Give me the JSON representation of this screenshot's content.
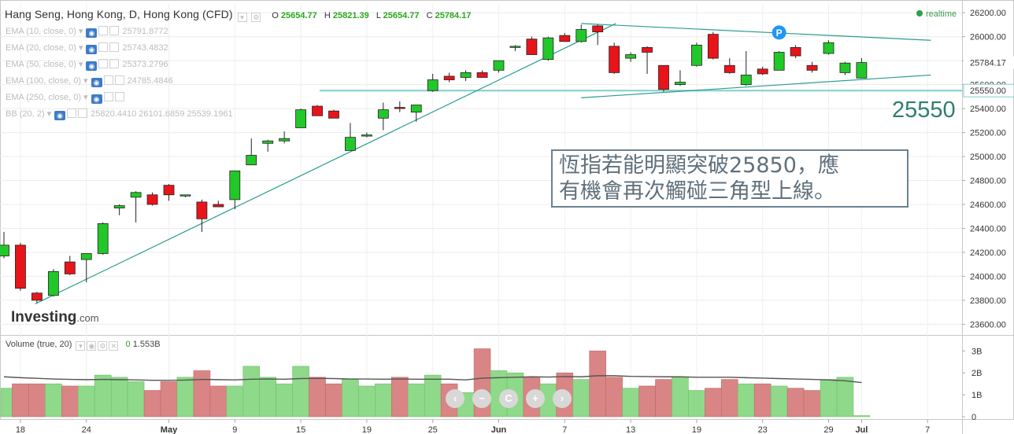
{
  "header": {
    "symbol": "Hang Seng, Hong Kong, D, Hong Kong (CFD)",
    "ohlc": [
      {
        "k": "O",
        "v": "25654.77"
      },
      {
        "k": "H",
        "v": "25821.39"
      },
      {
        "k": "L",
        "v": "25654.77"
      },
      {
        "k": "C",
        "v": "25784.17"
      }
    ],
    "realtime": "realtime"
  },
  "indicators": [
    {
      "label": "EMA (10, close, 0)",
      "value": "25791.8772"
    },
    {
      "label": "EMA (20, close, 0)",
      "value": "25743.4832"
    },
    {
      "label": "EMA (50, close, 0)",
      "value": "25373.2796"
    },
    {
      "label": "EMA (100, close, 0)",
      "value": "24785.4846"
    },
    {
      "label": "EMA (250, close, 0)",
      "value": ""
    },
    {
      "label": "BB (20, 2)",
      "value": "25820.4410  26101.6859  25539.1961"
    }
  ],
  "volume_header": {
    "label": "Volume (true, 20)",
    "v0": "0",
    "v1": "1.553B"
  },
  "logo": {
    "main": "Investing",
    "suffix": ".com"
  },
  "annotation": {
    "line1": "恆指若能明顯突破25850，應",
    "line2": "有機會再次觸碰三角型上線。",
    "level": "25550"
  },
  "colors": {
    "up": "#22c829",
    "down": "#e8141a",
    "trend": "#2a9d8f",
    "level": "#7fcfc8",
    "volume_up": "#8fd98a",
    "volume_down": "#d98585"
  },
  "chart_data": {
    "type": "candlestick",
    "price_axis": {
      "ylim": [
        23550,
        26280
      ],
      "ticks": [
        "26200.00",
        "26000.00",
        "25800.00",
        "25600.00",
        "25400.00",
        "25200.00",
        "25000.00",
        "24800.00",
        "24600.00",
        "24400.00",
        "24200.00",
        "24000.00",
        "23800.00",
        "23600.00"
      ],
      "last_price_label": "25784.17",
      "level_label": "25550.00",
      "level_value": 25550
    },
    "volume_axis": {
      "ylim": [
        0,
        3.3
      ],
      "ticks": [
        "3B",
        "2B",
        "1B",
        "0"
      ]
    },
    "x_ticks": [
      {
        "label": "18",
        "i": 1
      },
      {
        "label": "24",
        "i": 5
      },
      {
        "label": "May",
        "i": 10
      },
      {
        "label": "9",
        "i": 14
      },
      {
        "label": "15",
        "i": 18
      },
      {
        "label": "19",
        "i": 22
      },
      {
        "label": "25",
        "i": 26
      },
      {
        "label": "Jun",
        "i": 30
      },
      {
        "label": "7",
        "i": 34
      },
      {
        "label": "13",
        "i": 38
      },
      {
        "label": "19",
        "i": 42
      },
      {
        "label": "23",
        "i": 46
      },
      {
        "label": "29",
        "i": 50
      },
      {
        "label": "Jul",
        "i": 52
      },
      {
        "label": "7",
        "i": 56
      }
    ],
    "candles": [
      {
        "o": 24170,
        "h": 24370,
        "l": 24150,
        "c": 24260
      },
      {
        "o": 24260,
        "h": 24280,
        "l": 23880,
        "c": 23900
      },
      {
        "o": 23860,
        "h": 23870,
        "l": 23780,
        "c": 23800
      },
      {
        "o": 23840,
        "h": 24060,
        "l": 23830,
        "c": 24040
      },
      {
        "o": 24120,
        "h": 24170,
        "l": 24010,
        "c": 24020
      },
      {
        "o": 24140,
        "h": 24190,
        "l": 23950,
        "c": 24190
      },
      {
        "o": 24190,
        "h": 24450,
        "l": 24180,
        "c": 24440
      },
      {
        "o": 24570,
        "h": 24600,
        "l": 24510,
        "c": 24590
      },
      {
        "o": 24660,
        "h": 24710,
        "l": 24450,
        "c": 24700
      },
      {
        "o": 24680,
        "h": 24700,
        "l": 24590,
        "c": 24600
      },
      {
        "o": 24760,
        "h": 24770,
        "l": 24630,
        "c": 24680
      },
      {
        "o": 24680,
        "h": 24680,
        "l": 24660,
        "c": 24680
      },
      {
        "o": 24620,
        "h": 24640,
        "l": 24370,
        "c": 24480
      },
      {
        "o": 24600,
        "h": 24630,
        "l": 24580,
        "c": 24580
      },
      {
        "o": 24640,
        "h": 24880,
        "l": 24560,
        "c": 24880
      },
      {
        "o": 24930,
        "h": 25150,
        "l": 24930,
        "c": 25010
      },
      {
        "o": 25110,
        "h": 25140,
        "l": 25040,
        "c": 25130
      },
      {
        "o": 25130,
        "h": 25210,
        "l": 25110,
        "c": 25150
      },
      {
        "o": 25240,
        "h": 25400,
        "l": 25240,
        "c": 25390
      },
      {
        "o": 25420,
        "h": 25430,
        "l": 25340,
        "c": 25340
      },
      {
        "o": 25380,
        "h": 25390,
        "l": 25320,
        "c": 25320
      },
      {
        "o": 25050,
        "h": 25280,
        "l": 25050,
        "c": 25160
      },
      {
        "o": 25180,
        "h": 25200,
        "l": 25160,
        "c": 25180
      },
      {
        "o": 25320,
        "h": 25450,
        "l": 25220,
        "c": 25390
      },
      {
        "o": 25410,
        "h": 25460,
        "l": 25370,
        "c": 25400
      },
      {
        "o": 25370,
        "h": 25430,
        "l": 25290,
        "c": 25430
      },
      {
        "o": 25550,
        "h": 25690,
        "l": 25540,
        "c": 25640
      },
      {
        "o": 25670,
        "h": 25700,
        "l": 25620,
        "c": 25640
      },
      {
        "o": 25660,
        "h": 25720,
        "l": 25630,
        "c": 25700
      },
      {
        "o": 25700,
        "h": 25720,
        "l": 25660,
        "c": 25660
      },
      {
        "o": 25720,
        "h": 25800,
        "l": 25700,
        "c": 25800
      },
      {
        "o": 25920,
        "h": 25930,
        "l": 25880,
        "c": 25920
      },
      {
        "o": 25980,
        "h": 26000,
        "l": 25850,
        "c": 25850
      },
      {
        "o": 25810,
        "h": 26000,
        "l": 25800,
        "c": 25990
      },
      {
        "o": 26010,
        "h": 26030,
        "l": 25960,
        "c": 25960
      },
      {
        "o": 25960,
        "h": 26100,
        "l": 25950,
        "c": 26060
      },
      {
        "o": 26090,
        "h": 26100,
        "l": 25930,
        "c": 26040
      },
      {
        "o": 25920,
        "h": 25950,
        "l": 25690,
        "c": 25700
      },
      {
        "o": 25820,
        "h": 25870,
        "l": 25790,
        "c": 25850
      },
      {
        "o": 25910,
        "h": 25920,
        "l": 25690,
        "c": 25870
      },
      {
        "o": 25760,
        "h": 25760,
        "l": 25540,
        "c": 25560
      },
      {
        "o": 25600,
        "h": 25720,
        "l": 25590,
        "c": 25620
      },
      {
        "o": 25760,
        "h": 25950,
        "l": 25750,
        "c": 25930
      },
      {
        "o": 26020,
        "h": 26040,
        "l": 25810,
        "c": 25820
      },
      {
        "o": 25760,
        "h": 25820,
        "l": 25690,
        "c": 25700
      },
      {
        "o": 25600,
        "h": 25880,
        "l": 25590,
        "c": 25680
      },
      {
        "o": 25730,
        "h": 25750,
        "l": 25680,
        "c": 25690
      },
      {
        "o": 25720,
        "h": 25880,
        "l": 25720,
        "c": 25870
      },
      {
        "o": 25910,
        "h": 25930,
        "l": 25820,
        "c": 25840
      },
      {
        "o": 25760,
        "h": 25790,
        "l": 25700,
        "c": 25720
      },
      {
        "o": 25860,
        "h": 25970,
        "l": 25850,
        "c": 25950
      },
      {
        "o": 25700,
        "h": 25790,
        "l": 25680,
        "c": 25780
      },
      {
        "o": 25654.77,
        "h": 25821.39,
        "l": 25654.77,
        "c": 25784.17
      }
    ],
    "volume": [
      1.3,
      1.5,
      1.5,
      1.5,
      1.4,
      1.4,
      1.9,
      1.8,
      1.6,
      1.2,
      1.6,
      1.8,
      2.1,
      1.4,
      1.4,
      2.3,
      1.8,
      1.5,
      2.3,
      1.8,
      1.5,
      1.7,
      1.4,
      1.5,
      1.8,
      1.5,
      1.9,
      1.5,
      1.1,
      3.1,
      2.1,
      2.0,
      1.8,
      1.5,
      2.0,
      1.7,
      3.0,
      1.8,
      1.3,
      1.4,
      1.7,
      1.8,
      1.2,
      1.3,
      1.7,
      1.5,
      1.5,
      1.4,
      1.3,
      1.2,
      1.7,
      1.8,
      0.05
    ],
    "volume_ma": [
      1.82,
      1.78,
      1.75,
      1.72,
      1.7,
      1.69,
      1.7,
      1.69,
      1.68,
      1.66,
      1.66,
      1.67,
      1.7,
      1.69,
      1.68,
      1.71,
      1.72,
      1.71,
      1.74,
      1.75,
      1.74,
      1.72,
      1.72,
      1.71,
      1.72,
      1.71,
      1.71,
      1.71,
      1.68,
      1.76,
      1.78,
      1.8,
      1.82,
      1.81,
      1.83,
      1.82,
      1.87,
      1.87,
      1.84,
      1.83,
      1.82,
      1.82,
      1.8,
      1.8,
      1.8,
      1.78,
      1.76,
      1.74,
      1.72,
      1.7,
      1.68,
      1.64,
      1.56
    ],
    "trendlines": [
      {
        "i1": 1.9,
        "p1": 23770,
        "i2": 37.1,
        "p2": 26110
      },
      {
        "i1": 35.0,
        "p1": 26110,
        "i2": 56.2,
        "p2": 25970
      },
      {
        "i1": 35.0,
        "p1": 25490,
        "i2": 56.2,
        "p2": 25680
      }
    ],
    "pivot_marker": {
      "label": "P",
      "i": 47,
      "p": 26035
    }
  }
}
